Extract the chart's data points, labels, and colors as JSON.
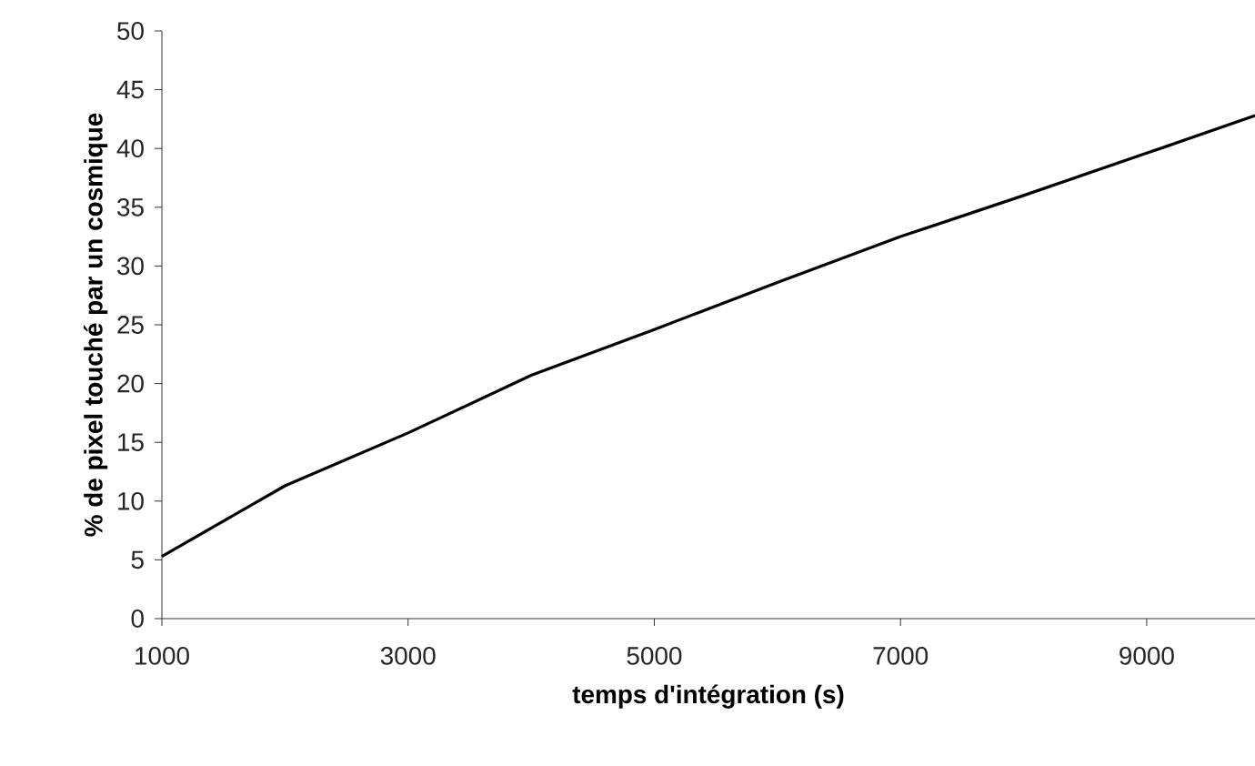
{
  "chart_data": {
    "type": "line",
    "xlabel": "temps d'intégration (s)",
    "ylabel": "% de pixel touché par un cosmique",
    "x": [
      1000,
      2000,
      3000,
      4000,
      5000,
      6000,
      7000,
      8000,
      9000,
      9880
    ],
    "values": [
      5.3,
      11.3,
      15.8,
      20.7,
      24.6,
      28.6,
      32.5,
      36.0,
      39.6,
      42.8
    ],
    "color": "#000000",
    "xlim": [
      1000,
      9880
    ],
    "ylim": [
      0,
      50
    ],
    "xticks": [
      1000,
      3000,
      5000,
      7000,
      9000
    ],
    "yticks": [
      0,
      5,
      10,
      15,
      20,
      25,
      30,
      35,
      40,
      45,
      50
    ],
    "marker": "none",
    "line_style": "solid"
  }
}
